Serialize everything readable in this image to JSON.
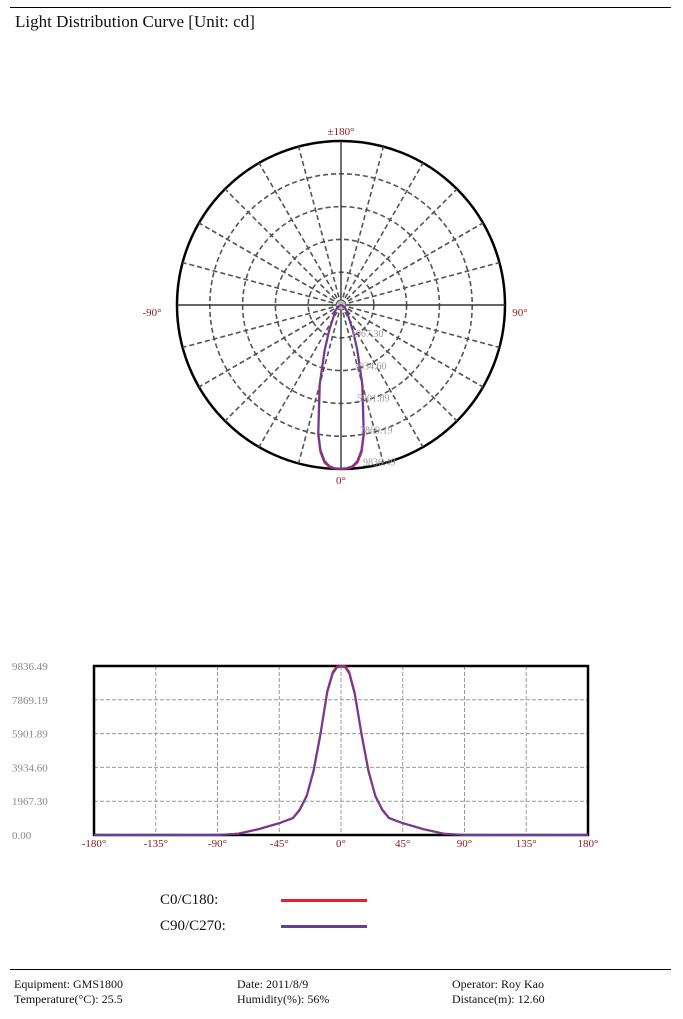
{
  "header": {
    "title": "Light Distribution Curve [Unit: cd]"
  },
  "colors": {
    "c0_c180": "#e8202a",
    "c90_c270": "#6a3d9a",
    "angle_labels": "#8b1a1a",
    "value_labels": "#888888"
  },
  "chart_data": [
    {
      "type": "polar",
      "angle_labels": {
        "top": "±180°",
        "left": "-90°",
        "right": "90°",
        "bottom": "0°"
      },
      "radial_labels": [
        "1967.30",
        "3934.60",
        "5901.89",
        "7869.19",
        "9836.49"
      ],
      "rmax": 9836.49,
      "grid": true,
      "series": [
        {
          "name": "C0/C180",
          "color": "#e8202a",
          "angles": [
            -90,
            -75,
            -60,
            -45,
            -30,
            -25,
            -20,
            -15,
            -10,
            -8,
            -6,
            -4,
            -2,
            0,
            2,
            4,
            6,
            8,
            10,
            15,
            20,
            25,
            30,
            45,
            60,
            75,
            90
          ],
          "values": [
            0,
            50,
            200,
            500,
            1000,
            1700,
            2900,
            5000,
            7900,
            8900,
            9500,
            9750,
            9830,
            9836,
            9820,
            9750,
            9500,
            8900,
            7900,
            5000,
            2900,
            1700,
            1000,
            500,
            200,
            50,
            0
          ]
        },
        {
          "name": "C90/C270",
          "color": "#6a3d9a",
          "angles": [
            -90,
            -75,
            -60,
            -45,
            -30,
            -25,
            -20,
            -15,
            -10,
            -8,
            -6,
            -4,
            -2,
            0,
            2,
            4,
            6,
            8,
            10,
            15,
            20,
            25,
            30,
            45,
            60,
            75,
            90
          ],
          "values": [
            0,
            40,
            180,
            480,
            980,
            1650,
            2800,
            4900,
            7800,
            8800,
            9400,
            9700,
            9800,
            9810,
            9790,
            9700,
            9400,
            8800,
            7800,
            4900,
            2800,
            1650,
            980,
            480,
            180,
            40,
            0
          ]
        }
      ]
    },
    {
      "type": "line",
      "x_tick_labels": [
        "-180°",
        "-135°",
        "-90°",
        "-45°",
        "0°",
        "45°",
        "90°",
        "135°",
        "180°"
      ],
      "y_tick_labels": [
        "0.00",
        "1967.30",
        "3934.60",
        "5901.89",
        "7869.19",
        "9836.49"
      ],
      "xlim": [
        -180,
        180
      ],
      "ylim": [
        0,
        9836.49
      ],
      "grid": true,
      "series": [
        {
          "name": "C0/C180",
          "color": "#e8202a",
          "x": [
            -180,
            -90,
            -75,
            -60,
            -45,
            -35,
            -30,
            -25,
            -20,
            -15,
            -10,
            -6,
            -3,
            0,
            3,
            6,
            10,
            15,
            20,
            25,
            30,
            35,
            45,
            60,
            75,
            90,
            180
          ],
          "y": [
            0,
            0,
            80,
            350,
            700,
            1000,
            1500,
            2300,
            3800,
            5900,
            8400,
            9500,
            9800,
            9836,
            9830,
            9500,
            8300,
            5900,
            3800,
            2300,
            1500,
            1000,
            700,
            350,
            80,
            0,
            0
          ]
        },
        {
          "name": "C90/C270",
          "color": "#6a3d9a",
          "x": [
            -180,
            -90,
            -75,
            -60,
            -45,
            -35,
            -30,
            -25,
            -20,
            -15,
            -10,
            -6,
            -3,
            0,
            3,
            6,
            10,
            15,
            20,
            25,
            30,
            35,
            45,
            60,
            75,
            90,
            180
          ],
          "y": [
            0,
            0,
            70,
            330,
            680,
            980,
            1450,
            2250,
            3700,
            5800,
            8300,
            9400,
            9750,
            9800,
            9760,
            9400,
            8200,
            5800,
            3700,
            2250,
            1450,
            980,
            680,
            330,
            70,
            0,
            0
          ]
        }
      ]
    }
  ],
  "legend": {
    "c0_c180": "C0/C180:",
    "c90_c270": "C90/C270:"
  },
  "footer": {
    "equipment": "Equipment: GMS1800",
    "temperature": "Temperature(°C): 25.5",
    "date": "Date: 2011/8/9",
    "humidity": "Humidity(%): 56%",
    "operator": "Operator: Roy Kao",
    "distance": "Distance(m): 12.60"
  }
}
